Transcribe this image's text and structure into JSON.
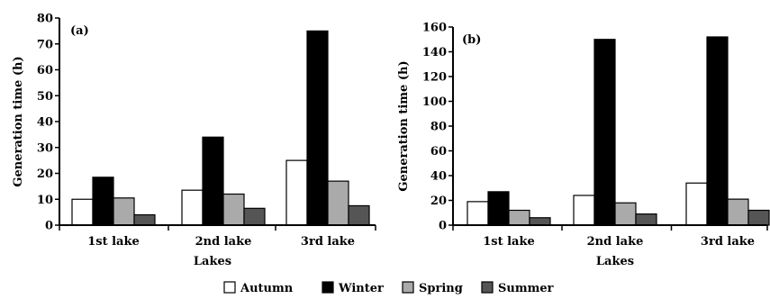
{
  "chart_data": [
    {
      "type": "bar",
      "panel_label": "(a)",
      "categories": [
        "1st lake",
        "2nd lake",
        "3rd lake"
      ],
      "series": [
        {
          "name": "Autumn",
          "values": [
            10,
            13.5,
            25
          ],
          "color": "#ffffff"
        },
        {
          "name": "Winter",
          "values": [
            18.5,
            34,
            75
          ],
          "color": "#000000"
        },
        {
          "name": "Spring",
          "values": [
            10.5,
            12,
            17
          ],
          "color": "#aaaaaa"
        },
        {
          "name": "Summer",
          "values": [
            4,
            6.5,
            7.5
          ],
          "color": "#555555"
        }
      ],
      "xlabel": "Lakes",
      "ylabel": "Generation time (h)",
      "ylim": [
        0,
        80
      ],
      "yticks": [
        0,
        10,
        20,
        30,
        40,
        50,
        60,
        70,
        80
      ]
    },
    {
      "type": "bar",
      "panel_label": "(b)",
      "categories": [
        "1st lake",
        "2nd lake",
        "3rd lake"
      ],
      "series": [
        {
          "name": "Autumn",
          "values": [
            19,
            24,
            34
          ],
          "color": "#ffffff"
        },
        {
          "name": "Winter",
          "values": [
            27,
            150,
            152
          ],
          "color": "#000000"
        },
        {
          "name": "Spring",
          "values": [
            12,
            18,
            21
          ],
          "color": "#aaaaaa"
        },
        {
          "name": "Summer",
          "values": [
            6,
            9,
            12
          ],
          "color": "#555555"
        }
      ],
      "xlabel": "Lakes",
      "ylabel": "Generation time (h)",
      "ylim": [
        0,
        160
      ],
      "yticks": [
        0,
        20,
        40,
        60,
        80,
        100,
        120,
        140,
        160
      ]
    }
  ],
  "legend": {
    "placement": "bottom-center",
    "items": [
      {
        "name": "Autumn",
        "color": "#ffffff"
      },
      {
        "name": "Winter",
        "color": "#000000"
      },
      {
        "name": "Spring",
        "color": "#aaaaaa"
      },
      {
        "name": "Summer",
        "color": "#555555"
      }
    ]
  }
}
